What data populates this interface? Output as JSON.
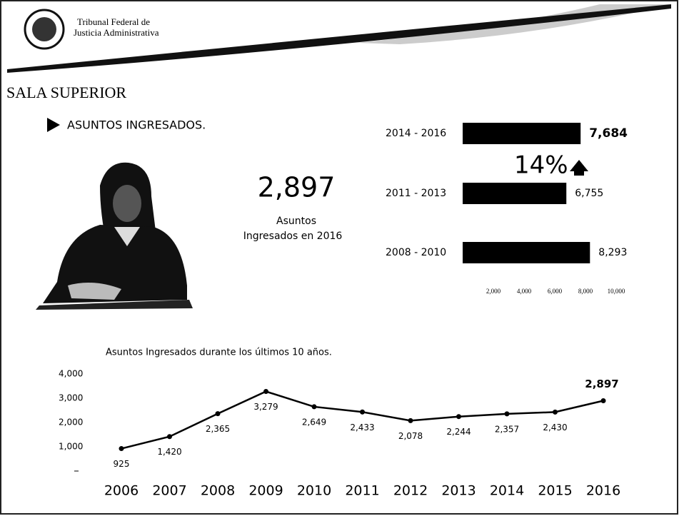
{
  "header": {
    "line1": "Tribunal Federal de",
    "line2": "Justicia Administrativa"
  },
  "slide_title": "SALA SUPERIOR",
  "bullet": "ASUNTOS INGRESADOS.",
  "highlight": {
    "number": "2,897",
    "caption1": "Asuntos",
    "caption2": "Ingresados en 2016"
  },
  "chart_data": [
    {
      "type": "hbar",
      "categories": [
        "2014 - 2016",
        "2011 - 2013",
        "2008 - 2010"
      ],
      "values": [
        7684,
        6755,
        8293
      ],
      "value_labels": [
        "7,684",
        "6,755",
        "8,293"
      ],
      "color": "#000000",
      "xlim": [
        0,
        10000
      ],
      "xticks": [
        {
          "value": 2000,
          "label": "2,000"
        },
        {
          "value": 4000,
          "label": "4,000"
        },
        {
          "value": 6000,
          "label": "6,000"
        },
        {
          "value": 8000,
          "label": "8,000"
        },
        {
          "value": 10000,
          "label": "10,000"
        }
      ],
      "annotation": "14%"
    },
    {
      "type": "line",
      "title": "Asuntos Ingresados durante los últimos 10 años.",
      "categories": [
        "2006",
        "2007",
        "2008",
        "2009",
        "2010",
        "2011",
        "2012",
        "2013",
        "2014",
        "2015",
        "2016"
      ],
      "values": [
        925,
        1420,
        2365,
        3279,
        2649,
        2433,
        2078,
        2244,
        2357,
        2430,
        2897
      ],
      "value_labels": [
        "925",
        "1,420",
        "2,365",
        "3,279",
        "2,649",
        "2,433",
        "2,078",
        "2,244",
        "2,357",
        "2,430",
        "2,897"
      ],
      "color": "#000000",
      "ylim": [
        0,
        4000
      ],
      "yticks": [
        {
          "value": 1000,
          "label": "1,000"
        },
        {
          "value": 2000,
          "label": "2,000"
        },
        {
          "value": 3000,
          "label": "3,000"
        },
        {
          "value": 4000,
          "label": "4,000"
        }
      ]
    }
  ]
}
